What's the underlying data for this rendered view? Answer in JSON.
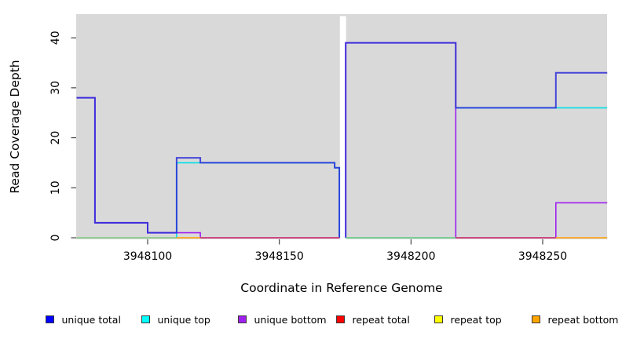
{
  "chart_data": {
    "type": "line",
    "subtype": "step-coverage",
    "title": "",
    "xlabel": "Coordinate in Reference Genome",
    "ylabel": "Read Coverage Depth",
    "x_tick_labels": [
      "3948100",
      "3948150",
      "3948200",
      "3948250"
    ],
    "x_tick_values": [
      3948100,
      3948150,
      3948200,
      3948250
    ],
    "y_tick_labels": [
      "0",
      "10",
      "20",
      "30",
      "40"
    ],
    "y_tick_values": [
      0,
      10,
      20,
      30,
      40
    ],
    "x_range": [
      3948073,
      3948274.5
    ],
    "y_range": [
      0,
      44.8
    ],
    "grid": false,
    "plot_bg_color": "#d9d9d9",
    "masked_region": {
      "from": 3948173,
      "to": 3948175.35,
      "color": "#ffffff"
    },
    "legend_position": "bottom",
    "series": [
      {
        "name": "unique total",
        "color": "#0000ff",
        "visible_color": "#2b2bd8",
        "opacity": 0.85,
        "width": 2,
        "z": 3,
        "pieces": [
          [
            [
              3948073,
              28
            ],
            [
              3948080,
              3
            ],
            [
              3948100,
              1
            ],
            [
              3948111,
              16
            ],
            [
              3948120,
              15
            ],
            [
              3948171,
              14
            ],
            [
              3948172.8,
              0
            ]
          ],
          [
            [
              3948175.2,
              0
            ],
            [
              3948175.2,
              39
            ],
            [
              3948217,
              26
            ],
            [
              3948255,
              33
            ],
            [
              3948274.5,
              33
            ]
          ]
        ]
      },
      {
        "name": "unique top",
        "color": "#00ffff",
        "visible_color": "#00dfe8",
        "opacity": 1,
        "width": 1.6,
        "z": 1,
        "pieces": [
          [
            [
              3948111,
              0
            ],
            [
              3948111,
              15
            ],
            [
              3948171,
              14
            ],
            [
              3948172.8,
              0
            ]
          ],
          [
            [
              3948175.2,
              0
            ],
            [
              3948217,
              26
            ],
            [
              3948274.5,
              26
            ]
          ]
        ]
      },
      {
        "name": "unique bottom",
        "color": "#a020f0",
        "visible_color": "#a020f0",
        "opacity": 1,
        "width": 1.6,
        "z": 2,
        "pieces": [
          [
            [
              3948073,
              28
            ],
            [
              3948080,
              3
            ],
            [
              3948100,
              1
            ],
            [
              3948120,
              0
            ],
            [
              3948172.8,
              0
            ]
          ],
          [
            [
              3948175.2,
              0
            ],
            [
              3948175.2,
              39
            ],
            [
              3948217,
              0
            ],
            [
              3948255,
              7
            ],
            [
              3948274.5,
              7
            ]
          ]
        ]
      },
      {
        "name": "repeat total",
        "color": "#ff0000",
        "visible_color": "#d4395e",
        "opacity": 1,
        "width": 1.6,
        "z": 4,
        "pieces": [
          [
            [
              3948120,
              0
            ],
            [
              3948172.8,
              0
            ]
          ],
          [
            [
              3948217,
              0
            ],
            [
              3948255,
              0
            ]
          ]
        ]
      },
      {
        "name": "repeat top",
        "color": "#ffff00",
        "visible_color": "#7ec87e",
        "opacity": 1,
        "width": 1.6,
        "z": 5,
        "pieces": [
          [
            [
              3948073,
              0
            ],
            [
              3948111,
              0
            ]
          ],
          [
            [
              3948175.2,
              0
            ],
            [
              3948217,
              0
            ]
          ]
        ]
      },
      {
        "name": "repeat bottom",
        "color": "#ffa500",
        "visible_color": "#ff9d00",
        "opacity": 1,
        "width": 1.6,
        "z": 6,
        "pieces": [
          [
            [
              3948111,
              0
            ],
            [
              3948120,
              0
            ]
          ],
          [
            [
              3948255,
              0
            ],
            [
              3948274.5,
              0
            ]
          ]
        ]
      }
    ]
  }
}
